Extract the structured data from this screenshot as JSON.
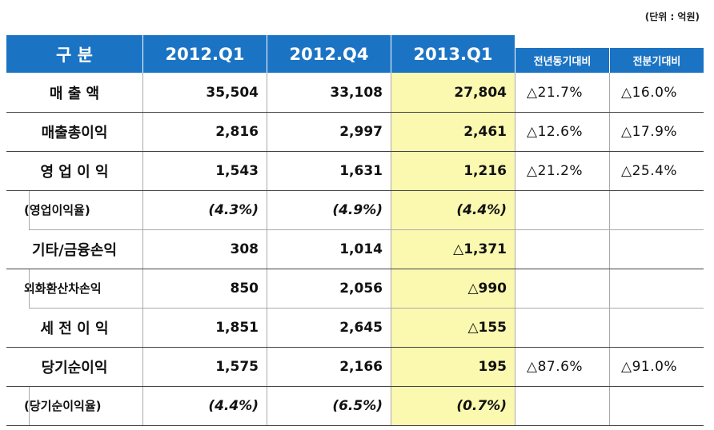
{
  "unit_label": "(단위 : 억원)",
  "header": {
    "col0": "구       분",
    "col1": "2012.Q1",
    "col2": "2012.Q4",
    "col3": "2013.Q1",
    "col4": "전년동기대비",
    "col5": "전분기대비"
  },
  "rows": [
    {
      "label": "매  출  액",
      "q1": "35,504",
      "q4": "33,108",
      "q13": "27,804",
      "yoy": "△21.7%",
      "qoq": "△16.0%"
    },
    {
      "label": "매출총이익",
      "q1": "2,816",
      "q4": "2,997",
      "q13": "2,461",
      "yoy": "△12.6%",
      "qoq": "△17.9%"
    },
    {
      "label": "영 업 이 익",
      "q1": "1,543",
      "q4": "1,631",
      "q13": "1,216",
      "yoy": "△21.2%",
      "qoq": "△25.4%"
    },
    {
      "label": "(영업이익율)",
      "q1": "(4.3%)",
      "q4": "(4.9%)",
      "q13": "(4.4%)",
      "yoy": "",
      "qoq": ""
    },
    {
      "label": "기타/금융손익",
      "q1": "308",
      "q4": "1,014",
      "q13": "△1,371",
      "yoy": "",
      "qoq": ""
    },
    {
      "label": "외화환산차손익",
      "q1": "850",
      "q4": "2,056",
      "q13": "△990",
      "yoy": "",
      "qoq": ""
    },
    {
      "label": "세 전 이 익",
      "q1": "1,851",
      "q4": "2,645",
      "q13": "△155",
      "yoy": "",
      "qoq": ""
    },
    {
      "label": "당기순이익",
      "q1": "1,575",
      "q4": "2,166",
      "q13": "195",
      "yoy": "△87.6%",
      "qoq": "△91.0%"
    },
    {
      "label": "(당기순이익율)",
      "q1": "(4.4%)",
      "q4": "(6.5%)",
      "q13": "(0.7%)",
      "yoy": "",
      "qoq": ""
    }
  ]
}
